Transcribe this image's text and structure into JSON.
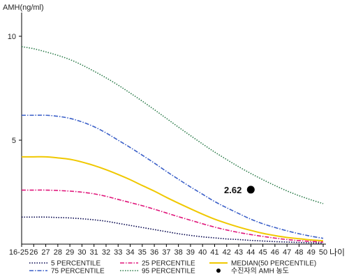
{
  "chart_data": {
    "type": "line",
    "ylabel": "AMH(ng/ml)",
    "xlabel": "나이",
    "x_ticks": [
      "16-25",
      "26",
      "27",
      "28",
      "29",
      "30",
      "31",
      "32",
      "33",
      "34",
      "35",
      "36",
      "37",
      "38",
      "39",
      "40",
      "41",
      "42",
      "43",
      "44",
      "45",
      "46",
      "47",
      "48",
      "49",
      "50"
    ],
    "ylim": [
      0,
      11
    ],
    "y_ticks": [
      5,
      10
    ],
    "grid": false,
    "legend_position": "bottom",
    "series": [
      {
        "name": "5 PERCENTILE",
        "color": "#00004a",
        "style": "dotted",
        "values": [
          1.3,
          1.3,
          1.3,
          1.28,
          1.26,
          1.22,
          1.17,
          1.1,
          1.0,
          0.9,
          0.8,
          0.7,
          0.6,
          0.5,
          0.42,
          0.35,
          0.3,
          0.25,
          0.22,
          0.18,
          0.15,
          0.12,
          0.1,
          0.08,
          0.06,
          0.05
        ]
      },
      {
        "name": "25 PERCENTILE",
        "color": "#e0157a",
        "style": "dashdot",
        "values": [
          2.6,
          2.6,
          2.6,
          2.58,
          2.55,
          2.5,
          2.42,
          2.3,
          2.15,
          2.0,
          1.85,
          1.68,
          1.5,
          1.32,
          1.15,
          0.98,
          0.82,
          0.68,
          0.56,
          0.46,
          0.37,
          0.29,
          0.22,
          0.17,
          0.13,
          0.1
        ]
      },
      {
        "name": "MEDIAN(50 PERCENTILE)",
        "color": "#f0c800",
        "style": "solid",
        "values": [
          4.2,
          4.2,
          4.2,
          4.15,
          4.08,
          3.95,
          3.78,
          3.58,
          3.35,
          3.1,
          2.82,
          2.55,
          2.25,
          1.97,
          1.7,
          1.44,
          1.2,
          1.0,
          0.82,
          0.66,
          0.52,
          0.41,
          0.32,
          0.26,
          0.2,
          0.16
        ]
      },
      {
        "name": "75 PERCENTILE",
        "color": "#3a5fc8",
        "style": "dashdot",
        "values": [
          6.2,
          6.2,
          6.2,
          6.15,
          6.05,
          5.88,
          5.65,
          5.35,
          5.0,
          4.65,
          4.28,
          3.9,
          3.5,
          3.12,
          2.75,
          2.4,
          2.05,
          1.75,
          1.47,
          1.2,
          0.98,
          0.8,
          0.64,
          0.5,
          0.38,
          0.28
        ]
      },
      {
        "name": "95 PERCENTILE",
        "color": "#2a7a48",
        "style": "dotted",
        "values": [
          9.5,
          9.4,
          9.25,
          9.08,
          8.88,
          8.62,
          8.32,
          8.0,
          7.65,
          7.27,
          6.88,
          6.47,
          6.05,
          5.63,
          5.22,
          4.82,
          4.43,
          4.07,
          3.72,
          3.4,
          3.1,
          2.82,
          2.56,
          2.33,
          2.13,
          1.95
        ]
      }
    ],
    "point": {
      "x": "44",
      "y": 2.62,
      "label": "2.62",
      "legend_label": "수진자의 AMH 농도",
      "color": "#000000"
    }
  }
}
